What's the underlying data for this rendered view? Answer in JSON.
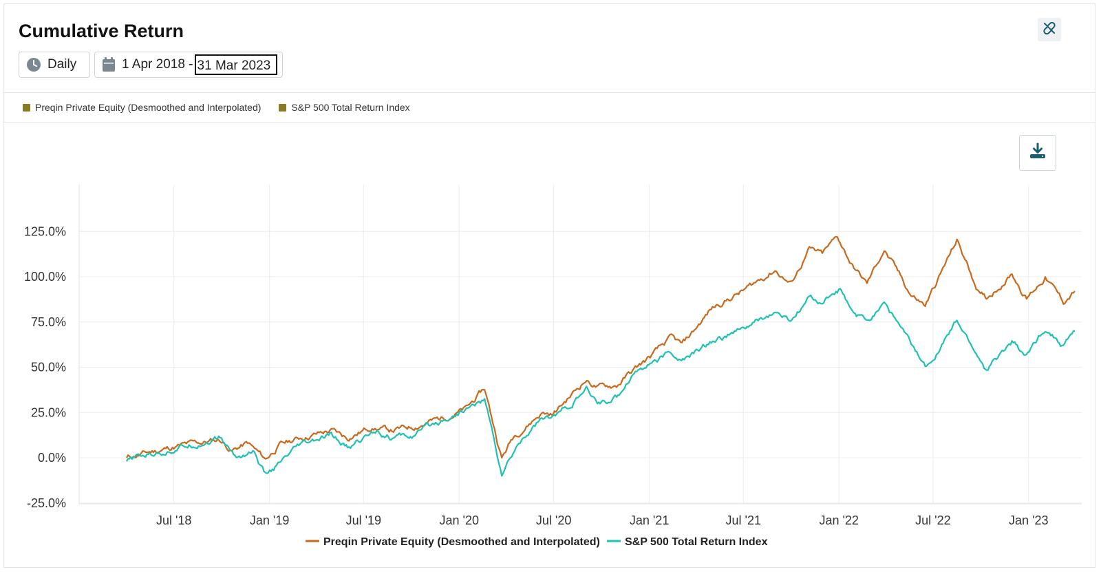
{
  "header": {
    "title": "Cumulative Return"
  },
  "controls": {
    "frequency_label": "Daily",
    "date_start": "1 Apr 2018 -",
    "date_end": "31 Mar 2023"
  },
  "icons": {
    "link": "unlink-icon",
    "clock": "clock-icon",
    "calendar": "calendar-icon",
    "download": "download-icon"
  },
  "top_legend": [
    {
      "label": "Preqin Private Equity (Desmoothed and Interpolated)",
      "color": "#8a7a24"
    },
    {
      "label": "S&P 500 Total Return Index",
      "color": "#8a7a24"
    }
  ],
  "chart_data": {
    "type": "line",
    "title": "",
    "xlabel": "",
    "ylabel": "",
    "x_range": [
      "2018-04-01",
      "2023-03-31"
    ],
    "ylim": [
      -25,
      140
    ],
    "y_ticks": [
      -25,
      0,
      25,
      50,
      75,
      100,
      125
    ],
    "y_tick_labels": [
      "-25.0%",
      "0.0%",
      "25.0%",
      "50.0%",
      "75.0%",
      "100.0%",
      "125.0%"
    ],
    "x_ticks": [
      "2018-07-01",
      "2019-01-01",
      "2019-07-01",
      "2020-01-01",
      "2020-07-01",
      "2021-01-01",
      "2021-07-01",
      "2022-01-01",
      "2022-07-01",
      "2023-01-01"
    ],
    "x_tick_labels": [
      "Jul '18",
      "Jan '19",
      "Jul '19",
      "Jan '20",
      "Jul '20",
      "Jan '21",
      "Jul '21",
      "Jan '22",
      "Jul '22",
      "Jan '23"
    ],
    "grid": true,
    "legend_position": "bottom",
    "series": [
      {
        "name": "Preqin Private Equity (Desmoothed and Interpolated)",
        "color": "#c8691d",
        "points": [
          [
            "2018-04-01",
            0
          ],
          [
            "2018-05-15",
            3
          ],
          [
            "2018-07-01",
            6
          ],
          [
            "2018-08-15",
            8
          ],
          [
            "2018-09-28",
            10
          ],
          [
            "2018-10-20",
            4
          ],
          [
            "2018-11-20",
            8
          ],
          [
            "2018-12-24",
            -1
          ],
          [
            "2019-01-20",
            7
          ],
          [
            "2019-03-01",
            11
          ],
          [
            "2019-04-30",
            15
          ],
          [
            "2019-05-31",
            11
          ],
          [
            "2019-07-15",
            17
          ],
          [
            "2019-08-25",
            15
          ],
          [
            "2019-10-01",
            17
          ],
          [
            "2019-11-30",
            22
          ],
          [
            "2020-01-15",
            27
          ],
          [
            "2020-02-19",
            38
          ],
          [
            "2020-03-23",
            0
          ],
          [
            "2020-04-15",
            12
          ],
          [
            "2020-06-08",
            25
          ],
          [
            "2020-06-30",
            24
          ],
          [
            "2020-08-31",
            43
          ],
          [
            "2020-09-25",
            39
          ],
          [
            "2020-10-30",
            40
          ],
          [
            "2020-11-30",
            48
          ],
          [
            "2020-12-31",
            55
          ],
          [
            "2021-02-12",
            66
          ],
          [
            "2021-03-05",
            62
          ],
          [
            "2021-04-30",
            82
          ],
          [
            "2021-05-15",
            85
          ],
          [
            "2021-06-30",
            92
          ],
          [
            "2021-08-31",
            104
          ],
          [
            "2021-09-30",
            96
          ],
          [
            "2021-11-05",
            115
          ],
          [
            "2021-11-30",
            112
          ],
          [
            "2021-12-29",
            122
          ],
          [
            "2022-01-27",
            106
          ],
          [
            "2022-02-24",
            96
          ],
          [
            "2022-03-29",
            115
          ],
          [
            "2022-05-20",
            90
          ],
          [
            "2022-06-16",
            84
          ],
          [
            "2022-08-16",
            120
          ],
          [
            "2022-09-30",
            90
          ],
          [
            "2022-10-12",
            88
          ],
          [
            "2022-11-30",
            102
          ],
          [
            "2022-12-28",
            88
          ],
          [
            "2023-02-02",
            100
          ],
          [
            "2023-03-09",
            86
          ],
          [
            "2023-03-31",
            92
          ]
        ]
      },
      {
        "name": "S&P 500 Total Return Index",
        "color": "#1fc1b3",
        "points": [
          [
            "2018-04-01",
            -2
          ],
          [
            "2018-05-15",
            2
          ],
          [
            "2018-07-01",
            5
          ],
          [
            "2018-08-15",
            8
          ],
          [
            "2018-09-28",
            11
          ],
          [
            "2018-10-29",
            0
          ],
          [
            "2018-11-30",
            4
          ],
          [
            "2018-12-24",
            -10
          ],
          [
            "2019-01-31",
            -1
          ],
          [
            "2019-03-01",
            6
          ],
          [
            "2019-04-30",
            12
          ],
          [
            "2019-06-03",
            5
          ],
          [
            "2019-07-26",
            16
          ],
          [
            "2019-08-23",
            11
          ],
          [
            "2019-10-02",
            12
          ],
          [
            "2019-11-30",
            21
          ],
          [
            "2020-01-15",
            27
          ],
          [
            "2020-02-19",
            32
          ],
          [
            "2020-03-23",
            -9
          ],
          [
            "2020-04-30",
            10
          ],
          [
            "2020-06-08",
            22
          ],
          [
            "2020-06-26",
            21
          ],
          [
            "2020-07-31",
            29
          ],
          [
            "2020-09-02",
            37
          ],
          [
            "2020-09-23",
            30
          ],
          [
            "2020-10-30",
            33
          ],
          [
            "2020-11-30",
            47
          ],
          [
            "2020-12-31",
            52
          ],
          [
            "2021-02-12",
            58
          ],
          [
            "2021-03-04",
            53
          ],
          [
            "2021-04-30",
            64
          ],
          [
            "2021-06-30",
            71
          ],
          [
            "2021-08-31",
            80
          ],
          [
            "2021-09-30",
            75
          ],
          [
            "2021-11-05",
            88
          ],
          [
            "2021-11-30",
            86
          ],
          [
            "2022-01-03",
            93
          ],
          [
            "2022-01-27",
            79
          ],
          [
            "2022-02-24",
            75
          ],
          [
            "2022-03-29",
            87
          ],
          [
            "2022-05-20",
            62
          ],
          [
            "2022-06-16",
            50
          ],
          [
            "2022-08-16",
            75
          ],
          [
            "2022-09-30",
            54
          ],
          [
            "2022-10-12",
            48
          ],
          [
            "2022-11-30",
            64
          ],
          [
            "2022-12-28",
            56
          ],
          [
            "2023-02-02",
            72
          ],
          [
            "2023-03-09",
            62
          ],
          [
            "2023-03-31",
            70
          ]
        ]
      }
    ]
  }
}
